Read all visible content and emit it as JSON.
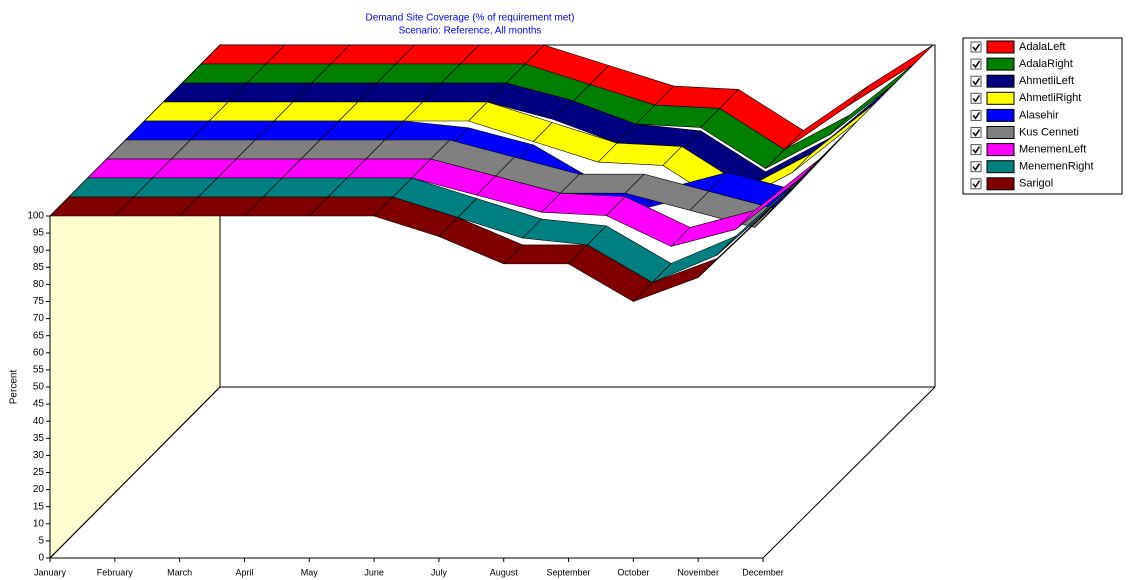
{
  "chart_data": {
    "type": "ribbon3d",
    "title": "Demand Site Coverage (% of requirement met)",
    "subtitle": "Scenario: Reference,  All months",
    "y_label": "Percent",
    "categories": [
      "January",
      "February",
      "March",
      "April",
      "May",
      "June",
      "July",
      "August",
      "September",
      "October",
      "November",
      "December"
    ],
    "ylim": [
      0,
      100
    ],
    "yticks": [
      0,
      5,
      10,
      15,
      20,
      25,
      30,
      35,
      40,
      45,
      50,
      55,
      60,
      65,
      70,
      75,
      80,
      85,
      90,
      95,
      100
    ],
    "series": [
      {
        "name": "AdalaLeft",
        "color": "#ff0000",
        "values": [
          100,
          100,
          100,
          100,
          100,
          100,
          94,
          88,
          87,
          75,
          88,
          100
        ]
      },
      {
        "name": "AdalaRight",
        "color": "#008000",
        "values": [
          100,
          100,
          100,
          100,
          100,
          100,
          94,
          88,
          87,
          75,
          85,
          100
        ]
      },
      {
        "name": "AhmetliLeft",
        "color": "#000080",
        "values": [
          100,
          100,
          100,
          100,
          100,
          100,
          95,
          88,
          86,
          74,
          84,
          100
        ]
      },
      {
        "name": "AhmetliRight",
        "color": "#ffff00",
        "values": [
          100,
          100,
          100,
          100,
          100,
          100,
          94,
          88,
          87,
          75,
          85,
          100
        ]
      },
      {
        "name": "Alasehir",
        "color": "#0000ff",
        "values": [
          100,
          100,
          100,
          100,
          100,
          98,
          93,
          82,
          80,
          85,
          80,
          100
        ]
      },
      {
        "name": "Kus Cenneti",
        "color": "#808080",
        "values": [
          100,
          100,
          100,
          100,
          100,
          100,
          95,
          90,
          90,
          85,
          80,
          100
        ]
      },
      {
        "name": "MenemenLeft",
        "color": "#ff00ff",
        "values": [
          100,
          100,
          100,
          100,
          100,
          100,
          95,
          90,
          89,
          80,
          85,
          100
        ]
      },
      {
        "name": "MenemenRight",
        "color": "#008080",
        "values": [
          100,
          100,
          100,
          100,
          100,
          100,
          94,
          88,
          86,
          75,
          83,
          100
        ]
      },
      {
        "name": "Sarigol",
        "color": "#800000",
        "values": [
          100,
          100,
          100,
          100,
          100,
          100,
          94,
          86,
          86,
          75,
          82,
          100
        ]
      }
    ]
  }
}
